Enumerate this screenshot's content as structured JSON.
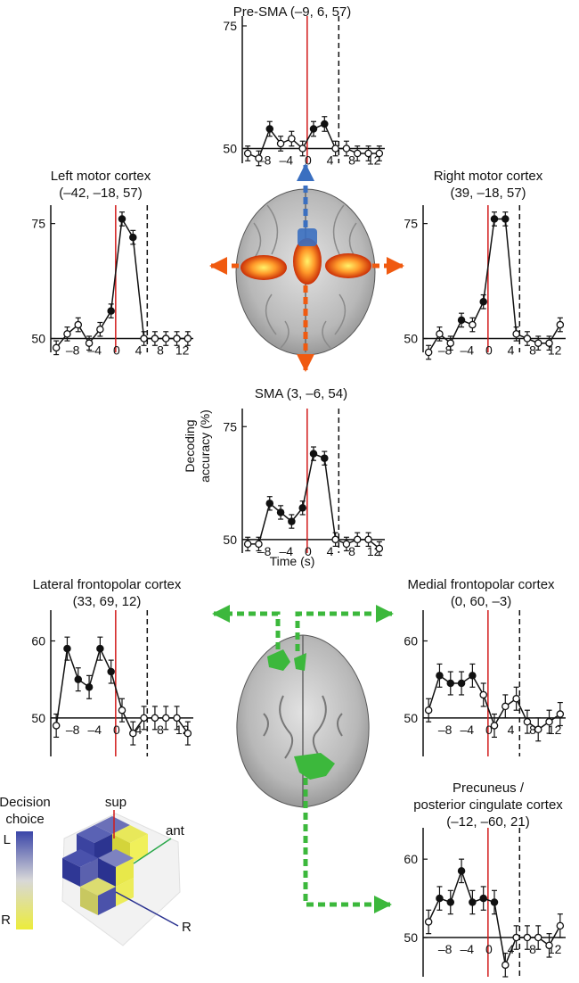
{
  "figure": {
    "time_axis_label": "Time (s)",
    "accuracy_axis_label": [
      "Decoding",
      "accuracy (%)"
    ],
    "legend": {
      "title": [
        "Decision",
        "choice"
      ],
      "top_label": "L",
      "bottom_label": "R",
      "colors": [
        "#3a45a8",
        "#ecec3a"
      ],
      "axis_labels": {
        "sup": "sup",
        "ant": "ant",
        "right": "R"
      }
    },
    "brain_colors": {
      "motor": "#f05a10",
      "frontopolar": "#3cb83c",
      "presma": "#3a6fc0"
    }
  },
  "chart_data": [
    {
      "type": "line",
      "id": "presma",
      "title": [
        "Pre-SMA (–9, 6, 57)"
      ],
      "xlabel": "",
      "ylabel": "",
      "x_ticks": [
        "–8",
        "–4",
        "0",
        "4",
        "8",
        "12"
      ],
      "y_ticks": [
        "50",
        "75"
      ],
      "x_range": [
        -12,
        14
      ],
      "y_range": [
        47,
        77
      ],
      "x": [
        -11,
        -9,
        -7,
        -5,
        -3,
        -1,
        1,
        3,
        5,
        7,
        9,
        11,
        13
      ],
      "values": [
        49,
        48,
        54,
        51,
        52,
        50,
        54,
        55,
        50,
        50,
        49,
        49,
        49
      ],
      "errors": [
        1.5,
        1.5,
        1.5,
        1.5,
        1.5,
        1.5,
        1.5,
        1.5,
        1.5,
        1.5,
        1.5,
        1.5,
        1.5
      ],
      "significant": [
        false,
        false,
        true,
        false,
        false,
        false,
        true,
        true,
        false,
        false,
        false,
        false,
        false
      ]
    },
    {
      "type": "line",
      "id": "left-motor",
      "title": [
        "Left motor cortex",
        "(–42, –18, 57)"
      ],
      "xlabel": "",
      "ylabel": "",
      "x_ticks": [
        "–8",
        "–4",
        "0",
        "4",
        "8",
        "12"
      ],
      "y_ticks": [
        "50",
        "75"
      ],
      "x_range": [
        -12,
        14
      ],
      "y_range": [
        47,
        79
      ],
      "x": [
        -11,
        -9,
        -7,
        -5,
        -3,
        -1,
        1,
        3,
        5,
        7,
        9,
        11,
        13
      ],
      "values": [
        48,
        51,
        53,
        49,
        52,
        56,
        76,
        72,
        50,
        50,
        50,
        50,
        50
      ],
      "errors": [
        1.5,
        1.5,
        1.5,
        1.5,
        1.5,
        1.5,
        1.5,
        1.5,
        1.5,
        1.5,
        1.5,
        1.5,
        1.5
      ],
      "significant": [
        false,
        false,
        false,
        false,
        false,
        true,
        true,
        true,
        false,
        false,
        false,
        false,
        false
      ]
    },
    {
      "type": "line",
      "id": "right-motor",
      "title": [
        "Right motor cortex",
        "(39, –18, 57)"
      ],
      "xlabel": "",
      "ylabel": "",
      "x_ticks": [
        "–8",
        "–4",
        "0",
        "4",
        "8",
        "12"
      ],
      "y_ticks": [
        "50",
        "75"
      ],
      "x_range": [
        -12,
        14
      ],
      "y_range": [
        47,
        79
      ],
      "x": [
        -11,
        -9,
        -7,
        -5,
        -3,
        -1,
        1,
        3,
        5,
        7,
        9,
        11,
        13
      ],
      "values": [
        47,
        51,
        49,
        54,
        53,
        58,
        76,
        76,
        51,
        50,
        49,
        49,
        53
      ],
      "errors": [
        1.5,
        1.5,
        1.5,
        1.5,
        1.5,
        1.5,
        1.5,
        1.5,
        1.5,
        1.5,
        1.5,
        1.5,
        1.5
      ],
      "significant": [
        false,
        false,
        false,
        true,
        false,
        true,
        true,
        true,
        false,
        false,
        false,
        false,
        false
      ]
    },
    {
      "type": "line",
      "id": "sma",
      "title": [
        "SMA (3, –6, 54)"
      ],
      "xlabel": "",
      "ylabel": "",
      "x_ticks": [
        "–8",
        "–4",
        "0",
        "4",
        "8",
        "12"
      ],
      "y_ticks": [
        "50",
        "75"
      ],
      "x_range": [
        -12,
        14
      ],
      "y_range": [
        47,
        79
      ],
      "x": [
        -11,
        -9,
        -7,
        -5,
        -3,
        -1,
        1,
        3,
        5,
        7,
        9,
        11,
        13
      ],
      "values": [
        49,
        49,
        58,
        56,
        54,
        57,
        69,
        68,
        50,
        49,
        50,
        50,
        48
      ],
      "errors": [
        1.5,
        1.5,
        1.5,
        1.5,
        1.5,
        1.5,
        1.5,
        1.5,
        1.5,
        1.5,
        1.5,
        1.5,
        1.5
      ],
      "significant": [
        false,
        false,
        true,
        true,
        true,
        true,
        true,
        true,
        false,
        false,
        false,
        false,
        false
      ]
    },
    {
      "type": "line",
      "id": "lateral-frontopolar",
      "title": [
        "Lateral frontopolar cortex",
        "(33, 69, 12)"
      ],
      "xlabel": "",
      "ylabel": "",
      "x_ticks": [
        "–8",
        "–4",
        "0",
        "4",
        "8",
        "12"
      ],
      "y_ticks": [
        "50",
        "60"
      ],
      "x_range": [
        -12,
        14
      ],
      "y_range": [
        45,
        64
      ],
      "x": [
        -11,
        -9,
        -7,
        -5,
        -3,
        -1,
        1,
        3,
        5,
        7,
        9,
        11,
        13
      ],
      "values": [
        49,
        59,
        55,
        54,
        59,
        56,
        51,
        48,
        50,
        50,
        50,
        50,
        48
      ],
      "errors": [
        1.5,
        1.5,
        1.5,
        1.5,
        1.5,
        1.5,
        1.5,
        1.5,
        1.5,
        1.5,
        1.5,
        1.5,
        1.5
      ],
      "significant": [
        false,
        true,
        true,
        true,
        true,
        true,
        false,
        false,
        false,
        false,
        false,
        false,
        false
      ]
    },
    {
      "type": "line",
      "id": "medial-frontopolar",
      "title": [
        "Medial frontopolar cortex",
        "(0, 60, –3)"
      ],
      "xlabel": "",
      "ylabel": "",
      "x_ticks": [
        "–8",
        "–4",
        "0",
        "4",
        "8",
        "12"
      ],
      "y_ticks": [
        "50",
        "60"
      ],
      "x_range": [
        -12,
        14
      ],
      "y_range": [
        45,
        64
      ],
      "x": [
        -11,
        -9,
        -7,
        -5,
        -3,
        -1,
        1,
        3,
        5,
        7,
        9,
        11,
        13
      ],
      "values": [
        51,
        55.5,
        54.5,
        54.5,
        55.5,
        53,
        49,
        51.5,
        52.5,
        49.5,
        48.5,
        49.5,
        50.5
      ],
      "errors": [
        1.5,
        1.5,
        1.5,
        1.5,
        1.5,
        1.5,
        1.5,
        1.5,
        1.5,
        1.5,
        1.5,
        1.5,
        1.5
      ],
      "significant": [
        false,
        true,
        true,
        true,
        true,
        false,
        false,
        false,
        false,
        false,
        false,
        false,
        false
      ]
    },
    {
      "type": "line",
      "id": "precuneus",
      "title": [
        "Precuneus /",
        "posterior cingulate cortex",
        "(–12, –60, 21)"
      ],
      "xlabel": "",
      "ylabel": "",
      "x_ticks": [
        "–8",
        "–4",
        "0",
        "4",
        "8",
        "12"
      ],
      "y_ticks": [
        "50",
        "60"
      ],
      "x_range": [
        -12,
        14
      ],
      "y_range": [
        45,
        64
      ],
      "x": [
        -11,
        -9,
        -7,
        -5,
        -3,
        -1,
        1,
        3,
        5,
        7,
        9,
        11,
        13
      ],
      "values": [
        52,
        55,
        54.5,
        58.5,
        54.5,
        55,
        54.5,
        46.5,
        50,
        50,
        50,
        49,
        51.5
      ],
      "errors": [
        1.5,
        1.5,
        1.5,
        1.5,
        1.5,
        1.5,
        1.5,
        1.5,
        1.5,
        1.5,
        1.5,
        1.5,
        1.5
      ],
      "significant": [
        false,
        true,
        true,
        true,
        true,
        true,
        true,
        false,
        false,
        false,
        false,
        false,
        false
      ]
    }
  ]
}
